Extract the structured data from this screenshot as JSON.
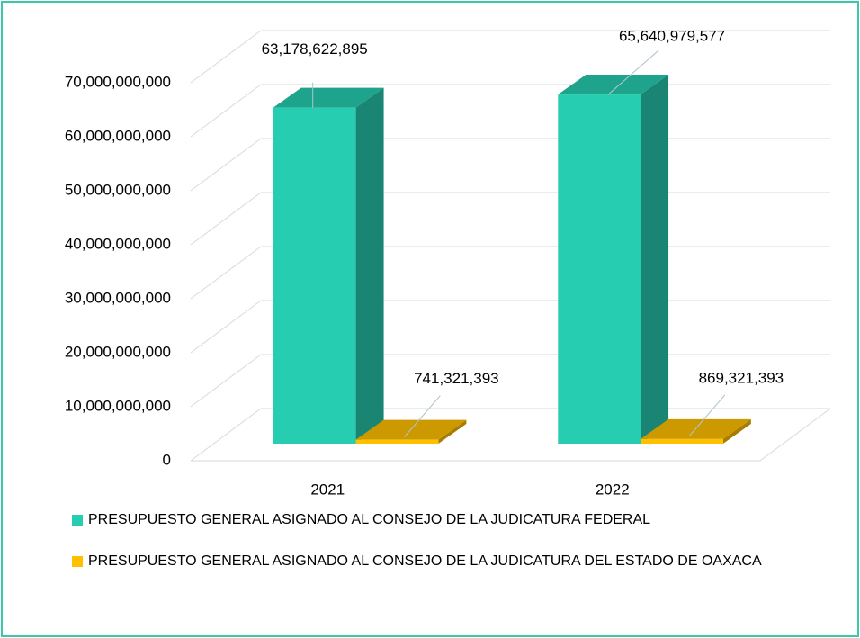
{
  "chart_data": {
    "type": "bar3d",
    "categories": [
      "2021",
      "2022"
    ],
    "series": [
      {
        "name": "PRESUPUESTO GENERAL ASIGNADO AL CONSEJO DE LA JUDICATURA FEDERAL",
        "color": "#26cdb0",
        "values": [
          63178622895,
          65640979577
        ],
        "value_labels": [
          "63,178,622,895",
          "65,640,979,577"
        ]
      },
      {
        "name": "PRESUPUESTO GENERAL ASIGNADO AL CONSEJO DE LA JUDICATURA DEL ESTADO DE OAXACA",
        "color": "#ffc000",
        "values": [
          741321393,
          869321393
        ],
        "value_labels": [
          "741,321,393",
          "869,321,393"
        ]
      }
    ],
    "ylim": [
      0,
      70000000000
    ],
    "yticks": [
      0,
      {
        "value": 10000000000,
        "label": "10,000,000,000"
      },
      {
        "value": 20000000000,
        "label": "20,000,000,000"
      },
      {
        "value": 30000000000,
        "label": "30,000,000,000"
      },
      {
        "value": 40000000000,
        "label": "40,000,000,000"
      },
      {
        "value": 50000000000,
        "label": "50,000,000,000"
      },
      {
        "value": 60000000000,
        "label": "60,000,000,000"
      },
      {
        "value": 70000000000,
        "label": "70,000,000,000"
      }
    ],
    "grid": true,
    "legend": "bottom"
  }
}
